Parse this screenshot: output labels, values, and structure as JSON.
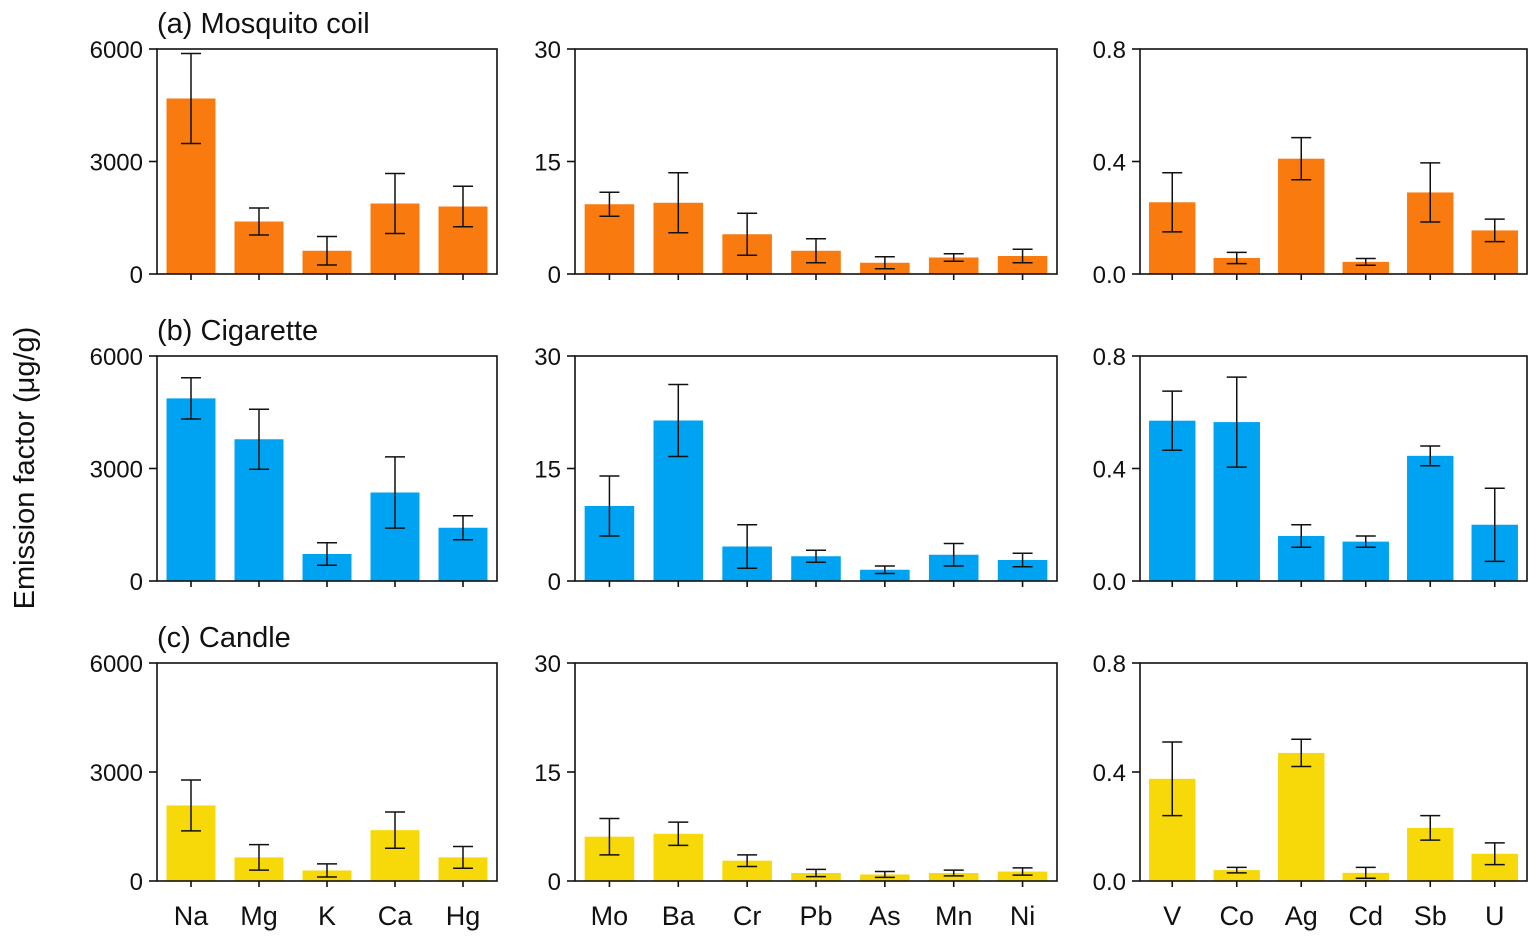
{
  "y_axis_title": "Emission factor (μg/g)",
  "colors": {
    "mosquito_coil": "#f97a0e",
    "cigarette": "#00a3f2",
    "candle": "#f7d90a"
  },
  "chart_data": [
    {
      "type": "bar",
      "title": "(a) Mosquito coil",
      "source": "Mosquito coil",
      "color_key": "mosquito_coil",
      "categories": [
        "Na",
        "Mg",
        "K",
        "Ca",
        "Hg"
      ],
      "values": [
        4680,
        1400,
        620,
        1880,
        1800
      ],
      "errors": [
        1200,
        360,
        380,
        800,
        540
      ],
      "ylim": [
        0,
        6000
      ],
      "yticks": [
        "0",
        "3000",
        "6000"
      ],
      "xlabel": "",
      "ylabel": "Emission factor (μg/g)"
    },
    {
      "type": "bar",
      "title": "",
      "source": "Mosquito coil",
      "color_key": "mosquito_coil",
      "categories": [
        "Mo",
        "Ba",
        "Cr",
        "Pb",
        "As",
        "Mn",
        "Ni"
      ],
      "values": [
        9.3,
        9.5,
        5.3,
        3.1,
        1.5,
        2.2,
        2.4
      ],
      "errors": [
        1.6,
        4.0,
        2.8,
        1.6,
        0.8,
        0.5,
        0.9
      ],
      "ylim": [
        0,
        30
      ],
      "yticks": [
        "0",
        "15",
        "30"
      ]
    },
    {
      "type": "bar",
      "title": "",
      "source": "Mosquito coil",
      "color_key": "mosquito_coil",
      "categories": [
        "V",
        "Co",
        "Ag",
        "Cd",
        "Sb",
        "U"
      ],
      "values": [
        0.255,
        0.057,
        0.41,
        0.043,
        0.29,
        0.155
      ],
      "errors": [
        0.105,
        0.02,
        0.075,
        0.012,
        0.105,
        0.04
      ],
      "ylim": [
        0,
        0.8
      ],
      "yticks": [
        "0.0",
        "0.4",
        "0.8"
      ]
    },
    {
      "type": "bar",
      "title": "(b) Cigarette",
      "source": "Cigarette",
      "color_key": "cigarette",
      "categories": [
        "Na",
        "Mg",
        "K",
        "Ca",
        "Hg"
      ],
      "values": [
        4870,
        3780,
        720,
        2360,
        1420
      ],
      "errors": [
        550,
        800,
        300,
        950,
        320
      ],
      "ylim": [
        0,
        6000
      ],
      "yticks": [
        "0",
        "3000",
        "6000"
      ]
    },
    {
      "type": "bar",
      "title": "",
      "source": "Cigarette",
      "color_key": "cigarette",
      "categories": [
        "Mo",
        "Ba",
        "Cr",
        "Pb",
        "As",
        "Mn",
        "Ni"
      ],
      "values": [
        10.0,
        21.4,
        4.6,
        3.3,
        1.5,
        3.5,
        2.8
      ],
      "errors": [
        4.0,
        4.8,
        2.9,
        0.8,
        0.5,
        1.5,
        0.9
      ],
      "ylim": [
        0,
        30
      ],
      "yticks": [
        "0",
        "15",
        "30"
      ]
    },
    {
      "type": "bar",
      "title": "",
      "source": "Cigarette",
      "color_key": "cigarette",
      "categories": [
        "V",
        "Co",
        "Ag",
        "Cd",
        "Sb",
        "U"
      ],
      "values": [
        0.57,
        0.565,
        0.16,
        0.14,
        0.445,
        0.2
      ],
      "errors": [
        0.105,
        0.16,
        0.04,
        0.02,
        0.035,
        0.13
      ],
      "ylim": [
        0,
        0.8
      ],
      "yticks": [
        "0.0",
        "0.4",
        "0.8"
      ]
    },
    {
      "type": "bar",
      "title": "(c) Candle",
      "source": "Candle",
      "color_key": "candle",
      "categories": [
        "Na",
        "Mg",
        "K",
        "Ca",
        "Hg"
      ],
      "values": [
        2080,
        650,
        290,
        1400,
        650
      ],
      "errors": [
        700,
        350,
        180,
        500,
        300
      ],
      "ylim": [
        0,
        6000
      ],
      "yticks": [
        "0",
        "3000",
        "6000"
      ],
      "xlabel": ""
    },
    {
      "type": "bar",
      "title": "",
      "source": "Candle",
      "color_key": "candle",
      "categories": [
        "Mo",
        "Ba",
        "Cr",
        "Pb",
        "As",
        "Mn",
        "Ni"
      ],
      "values": [
        6.1,
        6.5,
        2.8,
        1.1,
        0.9,
        1.1,
        1.3
      ],
      "errors": [
        2.5,
        1.6,
        0.8,
        0.5,
        0.4,
        0.4,
        0.5
      ],
      "ylim": [
        0,
        30
      ],
      "yticks": [
        "0",
        "15",
        "30"
      ]
    },
    {
      "type": "bar",
      "title": "",
      "source": "Candle",
      "color_key": "candle",
      "categories": [
        "V",
        "Co",
        "Ag",
        "Cd",
        "Sb",
        "U"
      ],
      "values": [
        0.375,
        0.04,
        0.47,
        0.03,
        0.195,
        0.1
      ],
      "errors": [
        0.135,
        0.01,
        0.05,
        0.02,
        0.045,
        0.04
      ],
      "ylim": [
        0,
        0.8
      ],
      "yticks": [
        "0.0",
        "0.4",
        "0.8"
      ]
    }
  ]
}
